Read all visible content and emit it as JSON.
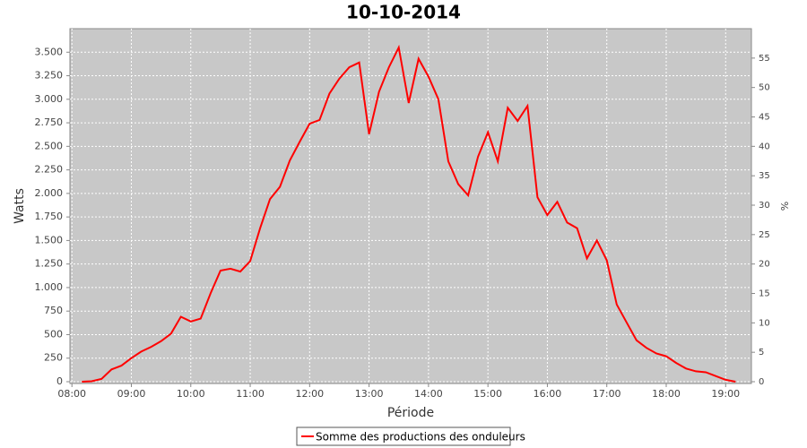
{
  "chart_data": {
    "type": "line",
    "title": "10-10-2014",
    "xlabel": "Période",
    "ylabel": "Watts",
    "y2label": "%",
    "x": [
      "08:10",
      "08:20",
      "08:30",
      "08:40",
      "08:50",
      "09:00",
      "09:10",
      "09:20",
      "09:30",
      "09:40",
      "09:50",
      "10:00",
      "10:10",
      "10:20",
      "10:30",
      "10:40",
      "10:50",
      "11:00",
      "11:10",
      "11:20",
      "11:30",
      "11:40",
      "11:50",
      "12:00",
      "12:10",
      "12:20",
      "12:30",
      "12:40",
      "12:50",
      "13:00",
      "13:10",
      "13:20",
      "13:30",
      "13:40",
      "13:50",
      "14:00",
      "14:10",
      "14:20",
      "14:30",
      "14:40",
      "14:50",
      "15:00",
      "15:10",
      "15:20",
      "15:30",
      "15:40",
      "15:50",
      "16:00",
      "16:10",
      "16:20",
      "16:30",
      "16:40",
      "16:50",
      "17:00",
      "17:10",
      "17:20",
      "17:30",
      "17:40",
      "17:50",
      "18:00",
      "18:10",
      "18:20",
      "18:30",
      "18:40",
      "18:50",
      "19:00",
      "19:10"
    ],
    "series": [
      {
        "name": "Somme des productions des onduleurs",
        "color": "#ff0000",
        "values": [
          0,
          5,
          30,
          130,
          170,
          250,
          320,
          370,
          430,
          510,
          690,
          640,
          670,
          940,
          1180,
          1200,
          1170,
          1280,
          1630,
          1940,
          2070,
          2350,
          2550,
          2740,
          2780,
          3060,
          3220,
          3340,
          3390,
          2630,
          3080,
          3340,
          3550,
          2960,
          3430,
          3240,
          3000,
          2340,
          2100,
          1980,
          2390,
          2650,
          2340,
          2910,
          2770,
          2930,
          1960,
          1770,
          1910,
          1690,
          1630,
          1310,
          1500,
          1290,
          820,
          630,
          440,
          360,
          300,
          270,
          200,
          140,
          110,
          100,
          60,
          20,
          0
        ]
      }
    ],
    "xlim": [
      "07:58",
      "19:26"
    ],
    "xticks": [
      "08:00",
      "09:00",
      "10:00",
      "11:00",
      "12:00",
      "13:00",
      "14:00",
      "15:00",
      "16:00",
      "17:00",
      "18:00",
      "19:00"
    ],
    "ylim": [
      0,
      3750
    ],
    "yticks": [
      0,
      {
        "value": 250,
        "label": "250"
      },
      {
        "value": 500,
        "label": "500"
      },
      {
        "value": 750,
        "label": "750"
      },
      {
        "value": 1000,
        "label": "1.000"
      },
      {
        "value": 1250,
        "label": "1.250"
      },
      {
        "value": 1500,
        "label": "1.500"
      },
      {
        "value": 1750,
        "label": "1.750"
      },
      {
        "value": 2000,
        "label": "2.000"
      },
      {
        "value": 2250,
        "label": "2.250"
      },
      {
        "value": 2500,
        "label": "2.500"
      },
      {
        "value": 2750,
        "label": "2.750"
      },
      {
        "value": 3000,
        "label": "3.000"
      },
      {
        "value": 3250,
        "label": "3.250"
      },
      {
        "value": 3500,
        "label": "3.500"
      }
    ],
    "y2lim": [
      0,
      60
    ],
    "y2ticks": [
      0,
      5,
      10,
      15,
      20,
      25,
      30,
      35,
      40,
      45,
      50,
      55
    ],
    "grid": true
  }
}
